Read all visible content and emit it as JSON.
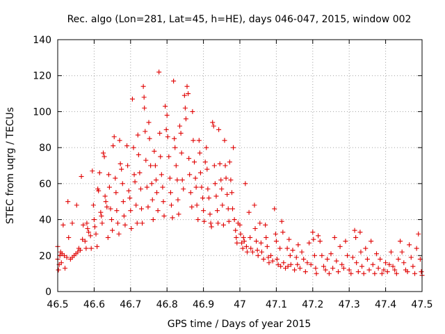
{
  "chart_data": {
    "type": "scatter",
    "title": "Rec. algo (Lon=281, Lat=45, h=HE), days 046-047, 2015, window 002",
    "xlabel": "GPS time / Days of year 2015",
    "ylabel": "STEC from uqrg / TECUs",
    "xlim": [
      46.5,
      47.5
    ],
    "ylim": [
      0,
      140
    ],
    "xticks": [
      46.5,
      46.6,
      46.7,
      46.8,
      46.9,
      47,
      47.1,
      47.2,
      47.3,
      47.4,
      47.5
    ],
    "xtick_labels": [
      "46.5",
      "46.6",
      "46.7",
      "46.8",
      "46.9",
      "47",
      "47.1",
      "47.2",
      "47.3",
      "47.4",
      "47.5"
    ],
    "yticks": [
      0,
      20,
      40,
      60,
      80,
      100,
      120,
      140
    ],
    "ytick_labels": [
      "0",
      "20",
      "40",
      "60",
      "80",
      "100",
      "120",
      "140"
    ],
    "grid": true,
    "marker": "plus",
    "color": "#e00000",
    "series": [
      {
        "name": "STEC",
        "points": [
          [
            46.5,
            25
          ],
          [
            46.5,
            18
          ],
          [
            46.502,
            12
          ],
          [
            46.504,
            15
          ],
          [
            46.506,
            20
          ],
          [
            46.508,
            22
          ],
          [
            46.51,
            16
          ],
          [
            46.512,
            21
          ],
          [
            46.515,
            37
          ],
          [
            46.518,
            20
          ],
          [
            46.52,
            13
          ],
          [
            46.525,
            19
          ],
          [
            46.528,
            50
          ],
          [
            46.53,
            30
          ],
          [
            46.535,
            18
          ],
          [
            46.54,
            38
          ],
          [
            46.54,
            19
          ],
          [
            46.545,
            20
          ],
          [
            46.55,
            21
          ],
          [
            46.552,
            48
          ],
          [
            46.555,
            22
          ],
          [
            46.558,
            24
          ],
          [
            46.562,
            23
          ],
          [
            46.565,
            64
          ],
          [
            46.568,
            29
          ],
          [
            46.57,
            37
          ],
          [
            46.575,
            28
          ],
          [
            46.578,
            24
          ],
          [
            46.58,
            38
          ],
          [
            46.582,
            35
          ],
          [
            46.585,
            33
          ],
          [
            46.59,
            31
          ],
          [
            46.592,
            24
          ],
          [
            46.595,
            67
          ],
          [
            46.598,
            48
          ],
          [
            46.6,
            40
          ],
          [
            46.602,
            36
          ],
          [
            46.605,
            32
          ],
          [
            46.608,
            25
          ],
          [
            46.61,
            57
          ],
          [
            46.612,
            56
          ],
          [
            46.615,
            66
          ],
          [
            46.618,
            44
          ],
          [
            46.62,
            42
          ],
          [
            46.622,
            38
          ],
          [
            46.625,
            77
          ],
          [
            46.628,
            75
          ],
          [
            46.63,
            53
          ],
          [
            46.632,
            50
          ],
          [
            46.635,
            47
          ],
          [
            46.638,
            30
          ],
          [
            46.64,
            65
          ],
          [
            46.642,
            58
          ],
          [
            46.645,
            46
          ],
          [
            46.648,
            40
          ],
          [
            46.65,
            34
          ],
          [
            46.652,
            81
          ],
          [
            46.655,
            86
          ],
          [
            46.658,
            63
          ],
          [
            46.66,
            55
          ],
          [
            46.662,
            45
          ],
          [
            46.665,
            38
          ],
          [
            46.668,
            32
          ],
          [
            46.67,
            84
          ],
          [
            46.672,
            71
          ],
          [
            46.675,
            68
          ],
          [
            46.678,
            60
          ],
          [
            46.68,
            50
          ],
          [
            46.682,
            42
          ],
          [
            46.685,
            37
          ],
          [
            46.69,
            81
          ],
          [
            46.692,
            70
          ],
          [
            46.695,
            56
          ],
          [
            46.698,
            52
          ],
          [
            46.7,
            45
          ],
          [
            46.702,
            35
          ],
          [
            46.705,
            107
          ],
          [
            46.708,
            80
          ],
          [
            46.71,
            65
          ],
          [
            46.712,
            61
          ],
          [
            46.715,
            48
          ],
          [
            46.718,
            38
          ],
          [
            46.72,
            87
          ],
          [
            46.722,
            76
          ],
          [
            46.725,
            66
          ],
          [
            46.728,
            57
          ],
          [
            46.73,
            46
          ],
          [
            46.732,
            38
          ],
          [
            46.735,
            114
          ],
          [
            46.737,
            108
          ],
          [
            46.738,
            102
          ],
          [
            46.74,
            89
          ],
          [
            46.742,
            73
          ],
          [
            46.745,
            58
          ],
          [
            46.748,
            47
          ],
          [
            46.75,
            94
          ],
          [
            46.752,
            85
          ],
          [
            46.755,
            70
          ],
          [
            46.758,
            60
          ],
          [
            46.76,
            51
          ],
          [
            46.762,
            40
          ],
          [
            46.765,
            78
          ],
          [
            46.768,
            70
          ],
          [
            46.77,
            62
          ],
          [
            46.772,
            55
          ],
          [
            46.775,
            45
          ],
          [
            46.778,
            122
          ],
          [
            46.78,
            88
          ],
          [
            46.782,
            75
          ],
          [
            46.785,
            65
          ],
          [
            46.788,
            58
          ],
          [
            46.79,
            50
          ],
          [
            46.792,
            42
          ],
          [
            46.795,
            103
          ],
          [
            46.798,
            90
          ],
          [
            46.8,
            98
          ],
          [
            46.802,
            86
          ],
          [
            46.805,
            75
          ],
          [
            46.808,
            63
          ],
          [
            46.81,
            55
          ],
          [
            46.812,
            48
          ],
          [
            46.815,
            41
          ],
          [
            46.818,
            117
          ],
          [
            46.82,
            85
          ],
          [
            46.822,
            80
          ],
          [
            46.825,
            70
          ],
          [
            46.828,
            62
          ],
          [
            46.83,
            51
          ],
          [
            46.832,
            43
          ],
          [
            46.835,
            92
          ],
          [
            46.838,
            88
          ],
          [
            46.84,
            77
          ],
          [
            46.842,
            62
          ],
          [
            46.845,
            57
          ],
          [
            46.848,
            109
          ],
          [
            46.85,
            102
          ],
          [
            46.852,
            96
          ],
          [
            46.855,
            114
          ],
          [
            46.858,
            110
          ],
          [
            46.86,
            74
          ],
          [
            46.862,
            65
          ],
          [
            46.865,
            55
          ],
          [
            46.868,
            47
          ],
          [
            46.87,
            100
          ],
          [
            46.872,
            84
          ],
          [
            46.875,
            72
          ],
          [
            46.878,
            63
          ],
          [
            46.88,
            58
          ],
          [
            46.882,
            48
          ],
          [
            46.885,
            40
          ],
          [
            46.888,
            84
          ],
          [
            46.89,
            77
          ],
          [
            46.892,
            66
          ],
          [
            46.895,
            58
          ],
          [
            46.898,
            52
          ],
          [
            46.9,
            45
          ],
          [
            46.902,
            39
          ],
          [
            46.905,
            72
          ],
          [
            46.908,
            80
          ],
          [
            46.91,
            68
          ],
          [
            46.912,
            57
          ],
          [
            46.915,
            52
          ],
          [
            46.918,
            43
          ],
          [
            46.92,
            38
          ],
          [
            46.922,
            36
          ],
          [
            46.925,
            94
          ],
          [
            46.928,
            92
          ],
          [
            46.93,
            70
          ],
          [
            46.932,
            60
          ],
          [
            46.935,
            53
          ],
          [
            46.938,
            45
          ],
          [
            46.94,
            38
          ],
          [
            46.942,
            90
          ],
          [
            46.945,
            71
          ],
          [
            46.948,
            62
          ],
          [
            46.95,
            57
          ],
          [
            46.952,
            48
          ],
          [
            46.955,
            37
          ],
          [
            46.958,
            84
          ],
          [
            46.96,
            70
          ],
          [
            46.962,
            63
          ],
          [
            46.965,
            54
          ],
          [
            46.968,
            46
          ],
          [
            46.97,
            39
          ],
          [
            46.972,
            72
          ],
          [
            46.975,
            62
          ],
          [
            46.978,
            55
          ],
          [
            46.98,
            46
          ],
          [
            46.982,
            80
          ],
          [
            46.985,
            40
          ],
          [
            46.988,
            34
          ],
          [
            46.99,
            30
          ],
          [
            46.992,
            27
          ],
          [
            46.995,
            38
          ],
          [
            47.0,
            37
          ],
          [
            47.002,
            32
          ],
          [
            47.005,
            27
          ],
          [
            47.008,
            24
          ],
          [
            47.01,
            30
          ],
          [
            47.012,
            28
          ],
          [
            47.015,
            60
          ],
          [
            47.018,
            25
          ],
          [
            47.02,
            22
          ],
          [
            47.025,
            44
          ],
          [
            47.028,
            30
          ],
          [
            47.03,
            24
          ],
          [
            47.035,
            22
          ],
          [
            47.04,
            48
          ],
          [
            47.042,
            35
          ],
          [
            47.045,
            28
          ],
          [
            47.048,
            23
          ],
          [
            47.05,
            20
          ],
          [
            47.055,
            38
          ],
          [
            47.058,
            27
          ],
          [
            47.06,
            22
          ],
          [
            47.065,
            18
          ],
          [
            47.07,
            37
          ],
          [
            47.072,
            30
          ],
          [
            47.075,
            25
          ],
          [
            47.078,
            19
          ],
          [
            47.08,
            16
          ],
          [
            47.085,
            20
          ],
          [
            47.09,
            17
          ],
          [
            47.095,
            46
          ],
          [
            47.098,
            32
          ],
          [
            47.1,
            28
          ],
          [
            47.102,
            18
          ],
          [
            47.105,
            15
          ],
          [
            47.11,
            24
          ],
          [
            47.112,
            14
          ],
          [
            47.115,
            39
          ],
          [
            47.118,
            33
          ],
          [
            47.12,
            16
          ],
          [
            47.125,
            13
          ],
          [
            47.13,
            24
          ],
          [
            47.132,
            14
          ],
          [
            47.135,
            29
          ],
          [
            47.138,
            20
          ],
          [
            47.14,
            15
          ],
          [
            47.145,
            23
          ],
          [
            47.15,
            12
          ],
          [
            47.155,
            19
          ],
          [
            47.158,
            15
          ],
          [
            47.16,
            26
          ],
          [
            47.165,
            13
          ],
          [
            47.17,
            22
          ],
          [
            47.175,
            18
          ],
          [
            47.18,
            11
          ],
          [
            47.185,
            16
          ],
          [
            47.19,
            27
          ],
          [
            47.195,
            15
          ],
          [
            47.2,
            33
          ],
          [
            47.202,
            29
          ],
          [
            47.205,
            20
          ],
          [
            47.208,
            13
          ],
          [
            47.21,
            10
          ],
          [
            47.215,
            31
          ],
          [
            47.22,
            28
          ],
          [
            47.225,
            20
          ],
          [
            47.23,
            14
          ],
          [
            47.235,
            12
          ],
          [
            47.24,
            18
          ],
          [
            47.245,
            10
          ],
          [
            47.25,
            21
          ],
          [
            47.255,
            13
          ],
          [
            47.26,
            30
          ],
          [
            47.265,
            17
          ],
          [
            47.27,
            11
          ],
          [
            47.275,
            25
          ],
          [
            47.28,
            15
          ],
          [
            47.285,
            13
          ],
          [
            47.29,
            28
          ],
          [
            47.295,
            20
          ],
          [
            47.3,
            12
          ],
          [
            47.305,
            10
          ],
          [
            47.31,
            19
          ],
          [
            47.315,
            34
          ],
          [
            47.318,
            30
          ],
          [
            47.32,
            16
          ],
          [
            47.325,
            11
          ],
          [
            47.33,
            33
          ],
          [
            47.332,
            22
          ],
          [
            47.335,
            14
          ],
          [
            47.34,
            10
          ],
          [
            47.345,
            24
          ],
          [
            47.35,
            18
          ],
          [
            47.355,
            12
          ],
          [
            47.36,
            28
          ],
          [
            47.365,
            15
          ],
          [
            47.37,
            10
          ],
          [
            47.375,
            21
          ],
          [
            47.38,
            13
          ],
          [
            47.385,
            18
          ],
          [
            47.39,
            10
          ],
          [
            47.395,
            12
          ],
          [
            47.4,
            16
          ],
          [
            47.405,
            11
          ],
          [
            47.41,
            15
          ],
          [
            47.415,
            22
          ],
          [
            47.42,
            14
          ],
          [
            47.425,
            12
          ],
          [
            47.43,
            10
          ],
          [
            47.435,
            18
          ],
          [
            47.44,
            28
          ],
          [
            47.445,
            22
          ],
          [
            47.45,
            16
          ],
          [
            47.455,
            12
          ],
          [
            47.46,
            11
          ],
          [
            47.465,
            26
          ],
          [
            47.47,
            19
          ],
          [
            47.475,
            14
          ],
          [
            47.48,
            10
          ],
          [
            47.485,
            24
          ],
          [
            47.49,
            32
          ],
          [
            47.495,
            18
          ],
          [
            47.498,
            11
          ],
          [
            47.5,
            9
          ]
        ]
      }
    ]
  }
}
